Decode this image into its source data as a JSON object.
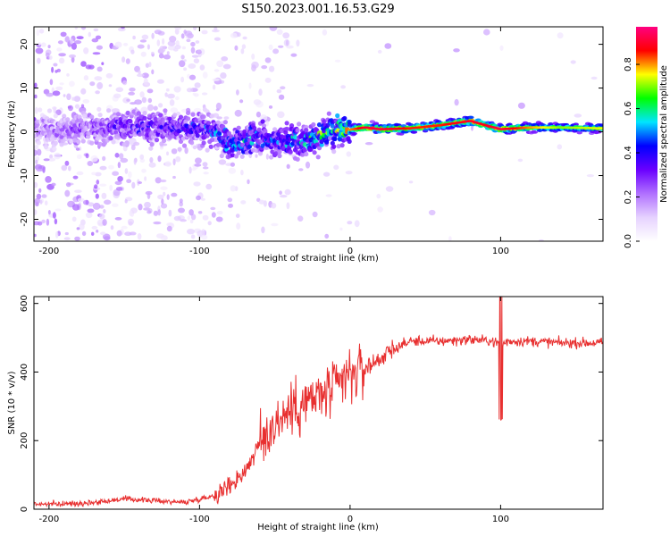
{
  "title": "S150.2023.001.16.53.G29",
  "chart_data": [
    {
      "type": "heatmap",
      "xlabel": "Height of straight line (km)",
      "ylabel": "Frequency (Hz)",
      "xlim": [
        -210,
        168
      ],
      "ylim": [
        -25,
        24
      ],
      "x_ticks": [
        -200,
        -100,
        0,
        100
      ],
      "y_ticks": [
        -20,
        -10,
        0,
        10,
        20
      ],
      "colorbar": {
        "label": "Normalized spectral amplitude",
        "range": [
          0,
          0.97
        ],
        "ticks": [
          0.0,
          0.2,
          0.4,
          0.6,
          0.8
        ],
        "colormap": [
          "#ffffff",
          "#e6d2ff",
          "#b070ff",
          "#6a00ff",
          "#0000ff",
          "#00e5ff",
          "#00ff00",
          "#ffff00",
          "#ff0000",
          "#ff0080"
        ]
      },
      "ridge": {
        "x": [
          -200,
          -180,
          -160,
          -140,
          -120,
          -100,
          -90,
          -80,
          -70,
          -60,
          -50,
          -40,
          -30,
          -20,
          -10,
          0,
          10,
          20,
          40,
          60,
          80,
          90,
          100,
          120,
          140,
          168
        ],
        "freq": [
          0.5,
          0.5,
          1.0,
          1.5,
          1.0,
          0.8,
          0.0,
          -3.0,
          -2.0,
          -1.0,
          -2.5,
          -2.0,
          -2.0,
          -1.0,
          1.0,
          0.5,
          1.0,
          0.6,
          0.8,
          1.5,
          2.5,
          1.5,
          0.6,
          1.0,
          1.0,
          0.8
        ],
        "amplitude": [
          0.25,
          0.3,
          0.35,
          0.4,
          0.4,
          0.45,
          0.5,
          0.55,
          0.55,
          0.5,
          0.5,
          0.55,
          0.6,
          0.65,
          0.75,
          0.8,
          0.9,
          0.92,
          0.85,
          0.85,
          0.9,
          0.88,
          0.92,
          0.8,
          0.7,
          0.75
        ]
      }
    },
    {
      "type": "line",
      "xlabel": "Height of straight line (km)",
      "ylabel": "SNR (10 * v/v)",
      "xlim": [
        -210,
        168
      ],
      "ylim": [
        0,
        620
      ],
      "x_ticks": [
        -200,
        -100,
        0,
        100
      ],
      "y_ticks": [
        0,
        200,
        400,
        600
      ],
      "series_color": "#e83030",
      "x": [
        -210,
        -190,
        -170,
        -150,
        -130,
        -110,
        -100,
        -90,
        -80,
        -70,
        -60,
        -50,
        -40,
        -30,
        -20,
        -15,
        -10,
        -5,
        0,
        5,
        10,
        20,
        30,
        40,
        60,
        80,
        95,
        100,
        105,
        120,
        140,
        168
      ],
      "y": [
        15,
        15,
        20,
        30,
        25,
        20,
        30,
        40,
        70,
        110,
        190,
        250,
        290,
        310,
        330,
        340,
        350,
        375,
        390,
        400,
        410,
        440,
        470,
        490,
        490,
        495,
        490,
        480,
        490,
        490,
        485,
        485
      ]
    }
  ]
}
